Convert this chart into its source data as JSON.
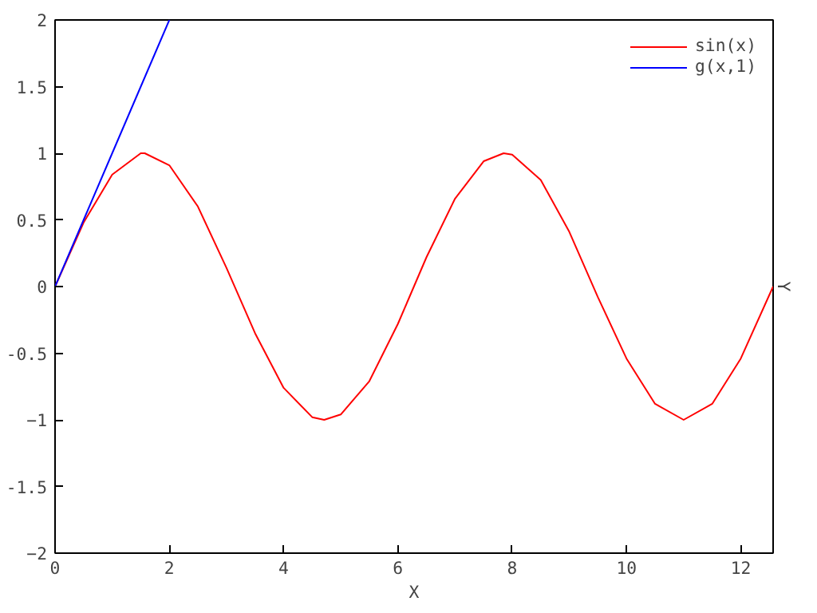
{
  "chart_data": {
    "type": "line",
    "xlabel": "X",
    "ylabel": "Y",
    "xlim": [
      0,
      12.566
    ],
    "ylim": [
      -2,
      2
    ],
    "xticks": [
      0,
      2,
      4,
      6,
      8,
      10,
      12
    ],
    "yticks": [
      -2,
      {
        "value": -1.5,
        "label": "-1.5"
      },
      -1,
      {
        "value": -0.5,
        "label": "-0.5"
      },
      0,
      {
        "value": 0.5,
        "label": "0.5"
      },
      1,
      {
        "value": 1.5,
        "label": "1.5"
      },
      2
    ],
    "series": [
      {
        "name": "sin(x)",
        "color": "#ff0000",
        "x": [
          0,
          0.5,
          1,
          1.5,
          1.57,
          2,
          2.5,
          3,
          3.5,
          4,
          4.5,
          4.71,
          5,
          5.5,
          6,
          6.5,
          7,
          7.5,
          7.85,
          8,
          8.5,
          9,
          9.5,
          10,
          10.5,
          11,
          11.5,
          12,
          12.566
        ],
        "values": [
          0,
          0.48,
          0.84,
          1.0,
          1.0,
          0.91,
          0.6,
          0.14,
          -0.35,
          -0.76,
          -0.98,
          -1.0,
          -0.96,
          -0.71,
          -0.28,
          0.22,
          0.66,
          0.94,
          1.0,
          0.99,
          0.8,
          0.41,
          -0.08,
          -0.54,
          -0.88,
          -1.0,
          -0.88,
          -0.54,
          0
        ]
      },
      {
        "name": "g(x,1)",
        "color": "#0000ff",
        "x": [
          0,
          0.5,
          1,
          1.5,
          2
        ],
        "values": [
          0,
          0.5,
          1.0,
          1.5,
          2.0
        ]
      }
    ],
    "grid": false,
    "legend": "top right"
  }
}
